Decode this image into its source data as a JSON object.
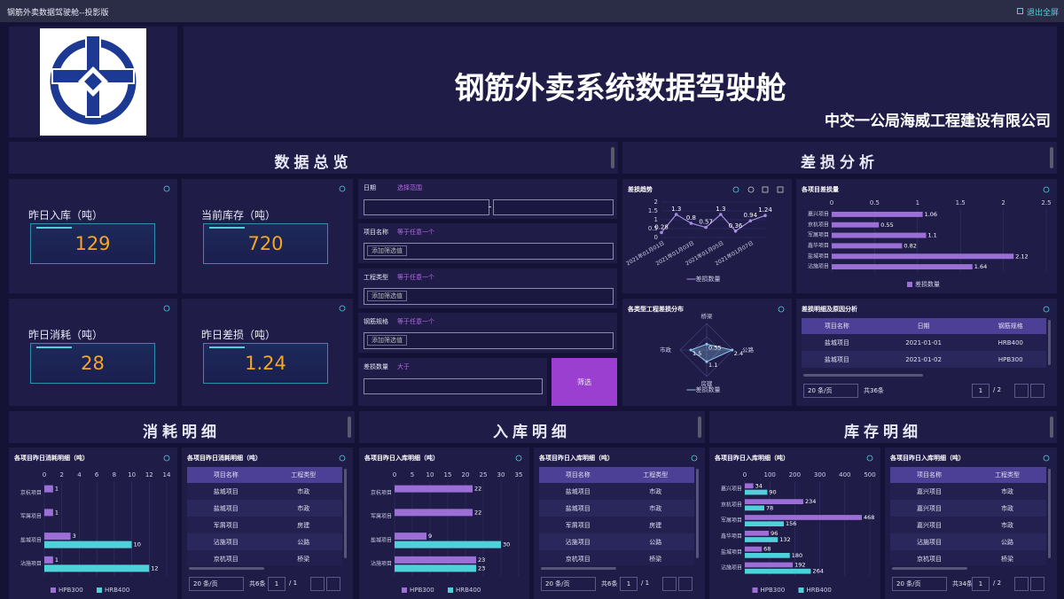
{
  "window": {
    "title": "钢筋外卖数据驾驶舱--投影版",
    "exit": "退出全屏"
  },
  "header": {
    "title": "钢筋外卖系统数据驾驶舱",
    "company": "中交一公局海威工程建设有限公司"
  },
  "overview": {
    "title": "数据总览",
    "kpis": [
      {
        "label": "昨日入库（吨）",
        "value": 129
      },
      {
        "label": "当前库存（吨）",
        "value": 720
      },
      {
        "label": "昨日消耗（吨）",
        "value": 28
      },
      {
        "label": "昨日差损（吨）",
        "value": 1.24
      }
    ]
  },
  "filters": {
    "fields": [
      {
        "label": "日期",
        "operator": "选择范围"
      },
      {
        "label": "项目名称",
        "operator": "等于任意一个",
        "placeholder": "添加筛选值"
      },
      {
        "label": "工程类型",
        "operator": "等于任意一个",
        "placeholder": "添加筛选值"
      },
      {
        "label": "钢筋规格",
        "operator": "等于任意一个",
        "placeholder": "添加筛选值"
      },
      {
        "label": "差损数量",
        "operator": "大于"
      }
    ],
    "button": "筛选"
  },
  "loss": {
    "title": "差损分析",
    "trend": {
      "type": "line",
      "title": "差损趋势",
      "categories": [
        "2021年01月01日",
        null,
        "2021年01月03日",
        null,
        "2021年01月05日",
        null,
        "2021年01月07日",
        null
      ],
      "series": [
        {
          "name": "差损数量",
          "color": "#a98ee0",
          "values": [
            0.28,
            1.3,
            0.8,
            0.57,
            1.3,
            0.36,
            0.94,
            1.24
          ]
        }
      ],
      "ylim": [
        0,
        2
      ],
      "yticks": [
        0,
        0.5,
        1,
        1.5,
        2
      ]
    },
    "by_project": {
      "type": "bar",
      "title": "各项目差损量",
      "categories": [
        "嘉兴项目",
        "京杭项目",
        "军屑项目",
        "鑫华项目",
        "盐城项目",
        "沾施项目"
      ],
      "series": [
        {
          "name": "差损数量",
          "color": "#9b6fd6",
          "values": [
            1.06,
            0.55,
            1.1,
            0.82,
            2.12,
            1.64
          ]
        }
      ],
      "xlim": [
        0,
        2.5
      ],
      "xticks": [
        0,
        0.5,
        1,
        1.5,
        2,
        2.5
      ]
    },
    "by_type": {
      "type": "radar",
      "title": "各类型工程差损分布",
      "categories": [
        "桥梁",
        "公路",
        "房建",
        "市政"
      ],
      "series": [
        {
          "name": "差损数量",
          "color": "#8fc6e8",
          "values": [
            0.55,
            2.4,
            1.1,
            1.5
          ]
        }
      ],
      "rlim": [
        0,
        2.5
      ]
    },
    "detail": {
      "title": "差损明细及原因分析",
      "columns": [
        "项目名称",
        "日期",
        "钢筋规格"
      ],
      "rows": [
        [
          "盐城项目",
          "2021-01-01",
          "HRB400"
        ],
        [
          "盐城项目",
          "2021-01-02",
          "HPB300"
        ]
      ],
      "pagination": {
        "page_size": "20 条/页",
        "total": "共36条",
        "page": 1,
        "pages": "/ 2"
      }
    }
  },
  "consumption": {
    "title": "消耗明细",
    "chart": {
      "type": "bar",
      "title": "各项目昨日消耗明细（吨）",
      "categories": [
        "京杭项目",
        "军屑项目",
        "盐城项目",
        "沾施项目"
      ],
      "series": [
        {
          "name": "HPB300",
          "color": "#9b6fd6",
          "values": [
            1,
            1,
            3,
            1
          ]
        },
        {
          "name": "HRB400",
          "color": "#4fd1d9",
          "values": [
            null,
            null,
            10,
            12
          ]
        }
      ],
      "xlim": [
        0,
        14
      ],
      "xticks": [
        0,
        2,
        4,
        6,
        8,
        10,
        12,
        14
      ]
    },
    "table": {
      "title": "各项目昨日消耗明细（吨）",
      "columns": [
        "项目名称",
        "工程类型"
      ],
      "rows": [
        [
          "盐城项目",
          "市政"
        ],
        [
          "盐城项目",
          "市政"
        ],
        [
          "军屑项目",
          "房建"
        ],
        [
          "沾施项目",
          "公路"
        ],
        [
          "京杭项目",
          "桥梁"
        ]
      ],
      "pagination": {
        "page_size": "20 条/页",
        "total": "共6条",
        "page": 1,
        "pages": "/ 1"
      }
    }
  },
  "inbound": {
    "title": "入库明细",
    "chart": {
      "type": "bar",
      "title": "各项目昨日入库明细（吨）",
      "categories": [
        "京杭项目",
        "军屑项目",
        "盐城项目",
        "沾施项目"
      ],
      "series": [
        {
          "name": "HPB300",
          "color": "#9b6fd6",
          "values": [
            22,
            22,
            9,
            23
          ]
        },
        {
          "name": "HRB400",
          "color": "#4fd1d9",
          "values": [
            null,
            null,
            30,
            23
          ]
        }
      ],
      "xlim": [
        0,
        35
      ],
      "xticks": [
        0,
        5,
        10,
        15,
        20,
        25,
        30,
        35
      ]
    },
    "table": {
      "title": "各项目昨日入库明细（吨）",
      "columns": [
        "项目名称",
        "工程类型"
      ],
      "rows": [
        [
          "盐城项目",
          "市政"
        ],
        [
          "盐城项目",
          "市政"
        ],
        [
          "军屑项目",
          "房建"
        ],
        [
          "沾施项目",
          "公路"
        ],
        [
          "京杭项目",
          "桥梁"
        ]
      ],
      "pagination": {
        "page_size": "20 条/页",
        "total": "共6条",
        "page": 1,
        "pages": "/ 1"
      }
    }
  },
  "inventory": {
    "title": "库存明细",
    "chart": {
      "type": "bar",
      "title": "各项目昨日入库明细（吨）",
      "categories": [
        "嘉兴项目",
        "京杭项目",
        "军屑项目",
        "鑫华项目",
        "盐城项目",
        "沾施项目"
      ],
      "series": [
        {
          "name": "HPB300",
          "color": "#9b6fd6",
          "values": [
            34,
            234,
            468,
            96,
            68,
            192
          ]
        },
        {
          "name": "HRB400",
          "color": "#4fd1d9",
          "values": [
            90,
            78,
            156,
            132,
            180,
            264
          ]
        }
      ],
      "xlim": [
        0,
        500
      ],
      "xticks": [
        0,
        100,
        200,
        300,
        400,
        500
      ]
    },
    "table": {
      "title": "各项目昨日入库明细（吨）",
      "columns": [
        "项目名称",
        "工程类型"
      ],
      "rows": [
        [
          "嘉兴项目",
          "市政"
        ],
        [
          "嘉兴项目",
          "市政"
        ],
        [
          "嘉兴项目",
          "市政"
        ],
        [
          "沾施项目",
          "公路"
        ],
        [
          "京杭项目",
          "桥梁"
        ]
      ],
      "pagination": {
        "page_size": "20 条/页",
        "total": "共34条",
        "page": 1,
        "pages": "/ 2"
      }
    }
  }
}
